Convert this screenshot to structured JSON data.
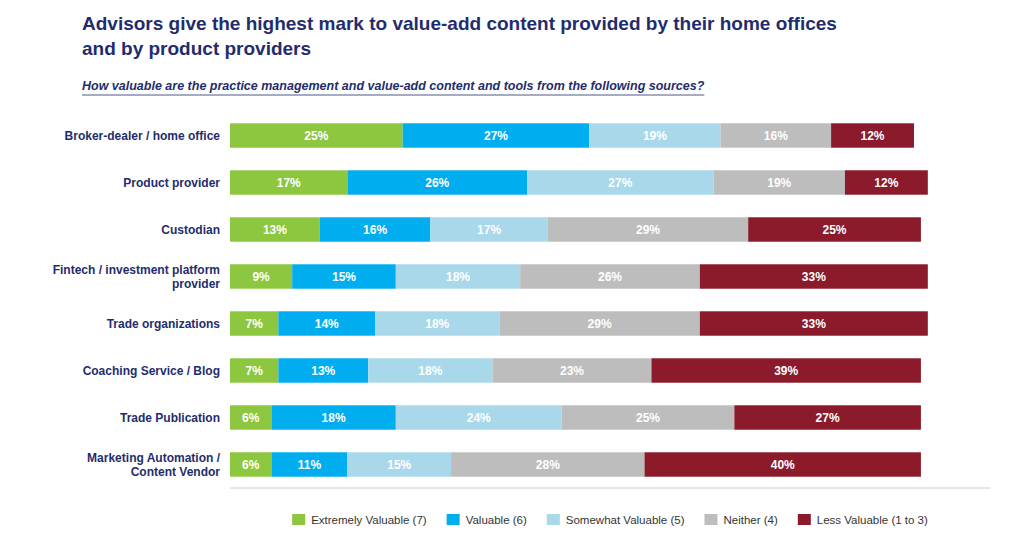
{
  "chart_data": {
    "type": "bar",
    "orientation": "horizontal",
    "stacked": true,
    "title": "Advisors give the highest mark to value-add content provided by their home offices\nand by product providers",
    "subtitle": "How valuable are the practice management and value-add content and tools from the following sources?",
    "categories": [
      "Broker-dealer / home office",
      "Product provider",
      "Custodian",
      "Fintech / investment platform\nprovider",
      "Trade organizations",
      "Coaching Service / Blog",
      "Trade Publication",
      "Marketing Automation /\nContent Vendor"
    ],
    "series": [
      {
        "name": "Extremely Valuable (7)",
        "color": "#8DC63F",
        "values": [
          25,
          17,
          13,
          9,
          7,
          7,
          6,
          6
        ],
        "value_labels": [
          "25%",
          "17%",
          "13%",
          "9%",
          "7%",
          "7%",
          "6%",
          "6%"
        ]
      },
      {
        "name": "Valuable (6)",
        "color": "#00AEEF",
        "values": [
          27,
          26,
          16,
          15,
          14,
          13,
          18,
          11
        ],
        "value_labels": [
          "27%",
          "26%",
          "16%",
          "15%",
          "14%",
          "13%",
          "18%",
          "11%"
        ]
      },
      {
        "name": "Somewhat Valuable (5)",
        "color": "#A8D8EA",
        "values": [
          19,
          27,
          17,
          18,
          18,
          18,
          24,
          15
        ],
        "value_labels": [
          "19%",
          "27%",
          "17%",
          "18%",
          "18%",
          "18%",
          "24%",
          "15%"
        ]
      },
      {
        "name": "Neither (4)",
        "color": "#BDBDBD",
        "values": [
          16,
          19,
          29,
          26,
          29,
          23,
          25,
          28
        ],
        "value_labels": [
          "16%",
          "19%",
          "29%",
          "26%",
          "29%",
          "23%",
          "25%",
          "28%"
        ]
      },
      {
        "name": "Less Valuable (1 to 3)",
        "color": "#8B1A2A",
        "values": [
          12,
          12,
          25,
          33,
          33,
          39,
          27,
          40
        ],
        "value_labels": [
          "12%",
          "12%",
          "25%",
          "33%",
          "33%",
          "39%",
          "27%",
          "40%"
        ]
      }
    ],
    "xlim": [
      0,
      110
    ],
    "data_labels": true,
    "tick_labels": "y",
    "legend": "bottom",
    "grid": false
  }
}
